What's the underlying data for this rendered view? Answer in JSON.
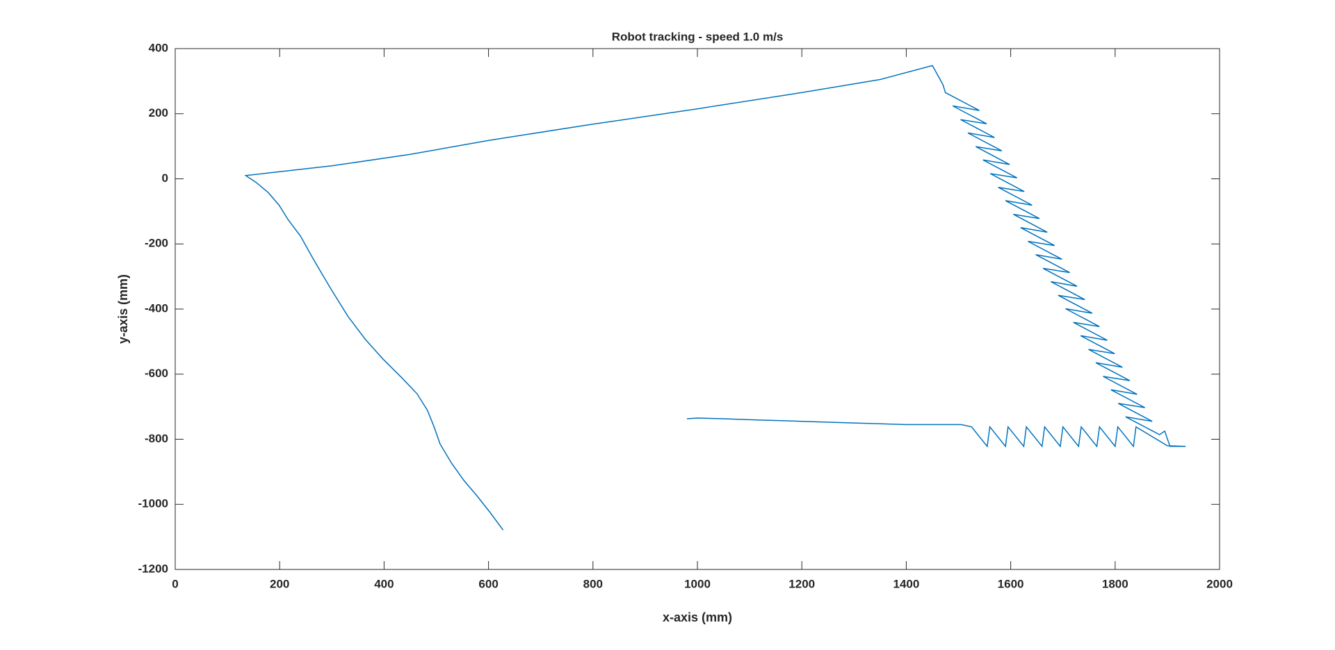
{
  "chart_data": {
    "type": "line",
    "title": "Robot tracking - speed 1.0 m/s",
    "x_label": "x-axis (mm)",
    "y_label": "y-axis (mm)",
    "color": "#0072bd",
    "x": [
      628,
      603,
      578,
      553,
      529,
      507,
      496,
      483,
      463,
      435,
      397,
      364,
      331,
      298,
      265,
      240,
      216,
      199,
      178,
      155,
      135,
      300,
      450,
      600,
      800,
      1000,
      1200,
      1350,
      1450,
      1470,
      1475,
      1540,
      1489,
      1554,
      1504,
      1569,
      1518,
      1583,
      1533,
      1598,
      1547,
      1612,
      1561,
      1626,
      1576,
      1641,
      1590,
      1655,
      1605,
      1670,
      1619,
      1684,
      1633,
      1698,
      1648,
      1713,
      1662,
      1727,
      1677,
      1742,
      1691,
      1756,
      1705,
      1770,
      1720,
      1785,
      1734,
      1799,
      1749,
      1814,
      1763,
      1828,
      1777,
      1842,
      1792,
      1857,
      1806,
      1871,
      1820,
      1885,
      1895,
      1905,
      1935,
      1900,
      1840,
      1835,
      1805,
      1800,
      1770,
      1765,
      1735,
      1730,
      1700,
      1695,
      1665,
      1660,
      1630,
      1625,
      1595,
      1590,
      1560,
      1555,
      1525,
      1505,
      1400,
      1300,
      1200,
      1100,
      1050,
      1000,
      980
    ],
    "values": [
      -1079,
      -1025,
      -974,
      -927,
      -873,
      -814,
      -763,
      -711,
      -660,
      -613,
      -552,
      -493,
      -423,
      -338,
      -248,
      -176,
      -125,
      -81,
      -42,
      -11,
      10,
      40,
      75,
      118,
      168,
      215,
      265,
      305,
      348,
      290,
      265,
      210,
      224,
      169,
      182,
      127,
      141,
      86,
      99,
      44,
      58,
      3,
      16,
      -39,
      -26,
      -81,
      -67,
      -122,
      -109,
      -164,
      -150,
      -205,
      -192,
      -247,
      -233,
      -288,
      -275,
      -330,
      -316,
      -371,
      -358,
      -413,
      -399,
      -454,
      -441,
      -496,
      -482,
      -537,
      -524,
      -579,
      -565,
      -620,
      -607,
      -662,
      -648,
      -703,
      -690,
      -745,
      -731,
      -786,
      -775,
      -822,
      -822,
      -820,
      -762,
      -822,
      -762,
      -822,
      -762,
      -822,
      -762,
      -822,
      -762,
      -822,
      -762,
      -822,
      -762,
      -822,
      -762,
      -822,
      -762,
      -822,
      -762,
      -755,
      -755,
      -750,
      -745,
      -740,
      -737,
      -735,
      -737
    ],
    "xlim": [
      0,
      2000
    ],
    "xticks": [
      0,
      200,
      400,
      600,
      800,
      1000,
      1200,
      1400,
      1600,
      1800,
      2000
    ],
    "ylim": [
      -1200,
      400
    ],
    "yticks": [
      -1200,
      -1000,
      -800,
      -600,
      -400,
      -200,
      0,
      200,
      400
    ]
  }
}
